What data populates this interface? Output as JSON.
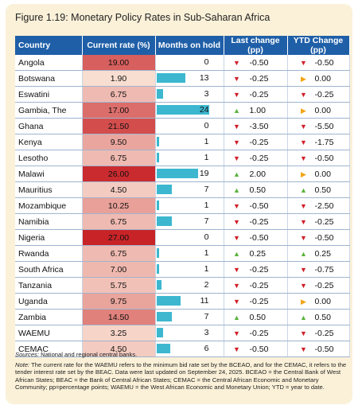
{
  "title": "Figure 1.19: Monetary Policy Rates in Sub-Saharan Africa",
  "headers": [
    "Country",
    "Current rate (%)",
    "Months on hold",
    "Last change (pp)",
    "YTD Change (pp)"
  ],
  "colors": {
    "header": "#1f5fa8",
    "bar": "#3cb7cf",
    "down": "#d0202a",
    "up": "#5cb23c",
    "flat": "#f2a516"
  },
  "rows": [
    {
      "country": "Angola",
      "rate": "19.00",
      "rate_value": 19.0,
      "months": "0",
      "months_value": 0,
      "last": "-0.50",
      "last_dir": "down",
      "ytd": "-0.50",
      "ytd_dir": "down"
    },
    {
      "country": "Botswana",
      "rate": "1.90",
      "rate_value": 1.9,
      "months": "13",
      "months_value": 13,
      "last": "-0.25",
      "last_dir": "down",
      "ytd": "0.00",
      "ytd_dir": "flat"
    },
    {
      "country": "Eswatini",
      "rate": "6.75",
      "rate_value": 6.75,
      "months": "3",
      "months_value": 3,
      "last": "-0.25",
      "last_dir": "down",
      "ytd": "-0.25",
      "ytd_dir": "down"
    },
    {
      "country": "Gambia, The",
      "rate": "17.00",
      "rate_value": 17.0,
      "months": "24",
      "months_value": 24,
      "last": "1.00",
      "last_dir": "up",
      "ytd": "0.00",
      "ytd_dir": "flat"
    },
    {
      "country": "Ghana",
      "rate": "21.50",
      "rate_value": 21.5,
      "months": "0",
      "months_value": 0,
      "last": "-3.50",
      "last_dir": "down",
      "ytd": "-5.50",
      "ytd_dir": "down"
    },
    {
      "country": "Kenya",
      "rate": "9.50",
      "rate_value": 9.5,
      "months": "1",
      "months_value": 1,
      "last": "-0.25",
      "last_dir": "down",
      "ytd": "-1.75",
      "ytd_dir": "down"
    },
    {
      "country": "Lesotho",
      "rate": "6.75",
      "rate_value": 6.75,
      "months": "1",
      "months_value": 1,
      "last": "-0.25",
      "last_dir": "down",
      "ytd": "-0.50",
      "ytd_dir": "down"
    },
    {
      "country": "Malawi",
      "rate": "26.00",
      "rate_value": 26.0,
      "months": "19",
      "months_value": 19,
      "last": "2.00",
      "last_dir": "up",
      "ytd": "0.00",
      "ytd_dir": "flat"
    },
    {
      "country": "Mauritius",
      "rate": "4.50",
      "rate_value": 4.5,
      "months": "7",
      "months_value": 7,
      "last": "0.50",
      "last_dir": "up",
      "ytd": "0.50",
      "ytd_dir": "up"
    },
    {
      "country": "Mozambique",
      "rate": "10.25",
      "rate_value": 10.25,
      "months": "1",
      "months_value": 1,
      "last": "-0.50",
      "last_dir": "down",
      "ytd": "-2.50",
      "ytd_dir": "down"
    },
    {
      "country": "Namibia",
      "rate": "6.75",
      "rate_value": 6.75,
      "months": "7",
      "months_value": 7,
      "last": "-0.25",
      "last_dir": "down",
      "ytd": "-0.25",
      "ytd_dir": "down"
    },
    {
      "country": "Nigeria",
      "rate": "27.00",
      "rate_value": 27.0,
      "months": "0",
      "months_value": 0,
      "last": "-0.50",
      "last_dir": "down",
      "ytd": "-0.50",
      "ytd_dir": "down"
    },
    {
      "country": "Rwanda",
      "rate": "6.75",
      "rate_value": 6.75,
      "months": "1",
      "months_value": 1,
      "last": "0.25",
      "last_dir": "up",
      "ytd": "0.25",
      "ytd_dir": "up"
    },
    {
      "country": "South Africa",
      "rate": "7.00",
      "rate_value": 7.0,
      "months": "1",
      "months_value": 1,
      "last": "-0.25",
      "last_dir": "down",
      "ytd": "-0.75",
      "ytd_dir": "down"
    },
    {
      "country": "Tanzania",
      "rate": "5.75",
      "rate_value": 5.75,
      "months": "2",
      "months_value": 2,
      "last": "-0.25",
      "last_dir": "down",
      "ytd": "-0.25",
      "ytd_dir": "down"
    },
    {
      "country": "Uganda",
      "rate": "9.75",
      "rate_value": 9.75,
      "months": "11",
      "months_value": 11,
      "last": "-0.25",
      "last_dir": "down",
      "ytd": "0.00",
      "ytd_dir": "flat"
    },
    {
      "country": "Zambia",
      "rate": "14.50",
      "rate_value": 14.5,
      "months": "7",
      "months_value": 7,
      "last": "0.50",
      "last_dir": "up",
      "ytd": "0.50",
      "ytd_dir": "up"
    },
    {
      "country": "WAEMU",
      "rate": "3.25",
      "rate_value": 3.25,
      "months": "3",
      "months_value": 3,
      "last": "-0.25",
      "last_dir": "down",
      "ytd": "-0.25",
      "ytd_dir": "down"
    },
    {
      "country": "CEMAC",
      "rate": "4.50",
      "rate_value": 4.5,
      "months": "6",
      "months_value": 6,
      "last": "-0.50",
      "last_dir": "down",
      "ytd": "-0.50",
      "ytd_dir": "down"
    }
  ],
  "sources_label": "Sources:",
  "sources_text": " National and regional central banks.",
  "note_label": "Note:",
  "note_text": " The current rate for the WAEMU refers to the minimum bid rate set by the BCEAO, and for the CEMAC, it refers to the tender interest rate set by the BEAC. Data were last updated on September 24, 2025. BCEAO = the Central Bank of West African States; BEAC = the Bank of Central African States; CEMAC = the Central African Economic and Monetary Community; pp=percentage points; WAEMU = the West African Economic and Monetary Union; YTD = year to date."
}
